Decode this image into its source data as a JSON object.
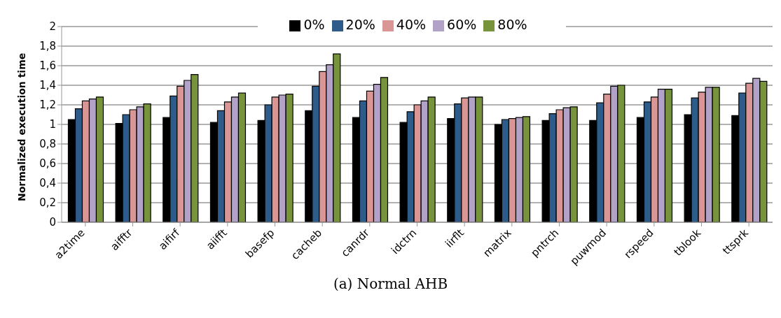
{
  "chart_data": {
    "type": "bar",
    "ylabel": "Normalized execution time",
    "categories": [
      "a2time",
      "aifftr",
      "aifirf",
      "aiifft",
      "basefp",
      "cacheb",
      "canrdr",
      "idctrn",
      "iirflt",
      "matrix",
      "pntrch",
      "puwmod",
      "rspeed",
      "tblook",
      "ttsprk"
    ],
    "series": [
      {
        "name": "0%",
        "color": "#000000",
        "values": [
          1.05,
          1.01,
          1.07,
          1.02,
          1.04,
          1.14,
          1.07,
          1.02,
          1.06,
          1.0,
          1.04,
          1.04,
          1.07,
          1.1,
          1.09
        ]
      },
      {
        "name": "20%",
        "color": "#2e5c8a",
        "values": [
          1.16,
          1.1,
          1.29,
          1.14,
          1.2,
          1.39,
          1.24,
          1.13,
          1.21,
          1.05,
          1.11,
          1.22,
          1.23,
          1.27,
          1.32
        ]
      },
      {
        "name": "40%",
        "color": "#d99694",
        "values": [
          1.24,
          1.15,
          1.39,
          1.23,
          1.28,
          1.54,
          1.34,
          1.2,
          1.27,
          1.06,
          1.15,
          1.31,
          1.28,
          1.33,
          1.42
        ]
      },
      {
        "name": "60%",
        "color": "#b3a2c7",
        "values": [
          1.26,
          1.18,
          1.45,
          1.28,
          1.3,
          1.61,
          1.41,
          1.24,
          1.28,
          1.07,
          1.17,
          1.39,
          1.36,
          1.38,
          1.47
        ]
      },
      {
        "name": "80%",
        "color": "#77933c",
        "values": [
          1.28,
          1.21,
          1.51,
          1.32,
          1.31,
          1.72,
          1.48,
          1.28,
          1.28,
          1.08,
          1.18,
          1.4,
          1.36,
          1.38,
          1.44
        ]
      }
    ],
    "ylim": [
      0,
      2
    ],
    "yticks": [
      0,
      {
        "value": 0.2,
        "label": "0,2"
      },
      {
        "value": 0.4,
        "label": "0,4"
      },
      {
        "value": 0.6,
        "label": "0,6"
      },
      {
        "value": 0.8,
        "label": "0,8"
      },
      1,
      {
        "value": 1.2,
        "label": "1,2"
      },
      {
        "value": 1.4,
        "label": "1,4"
      },
      {
        "value": 1.6,
        "label": "1,6"
      },
      {
        "value": 1.8,
        "label": "1,8"
      },
      2
    ],
    "grid": "y",
    "legend": "top",
    "annotations": [
      "(a) Normal AHB"
    ]
  }
}
